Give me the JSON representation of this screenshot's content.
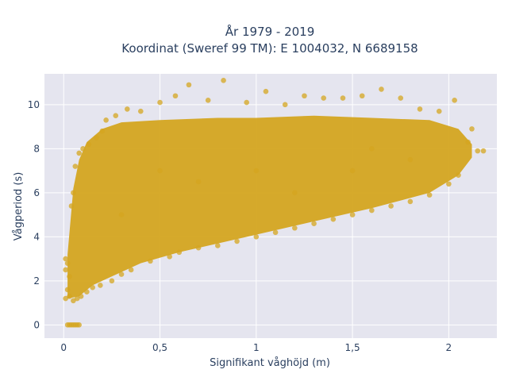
{
  "chart_data": {
    "type": "scatter",
    "title_lines": [
      "År 1979 - 2019",
      "Koordinat (Sweref 99 TM): E 1004032, N 6689158"
    ],
    "xlabel": "Signifikant våghöjd (m)",
    "ylabel": "Vågperiod (s)",
    "xlim": [
      -0.1,
      2.25
    ],
    "ylim": [
      -0.6,
      11.4
    ],
    "x_ticks": [
      0,
      0.5,
      1,
      1.5,
      2
    ],
    "x_tick_labels": [
      "0",
      "0,5",
      "1",
      "1,5",
      "2"
    ],
    "y_ticks": [
      0,
      2,
      4,
      6,
      8,
      10
    ],
    "y_tick_labels": [
      "0",
      "2",
      "4",
      "6",
      "8",
      "10"
    ],
    "grid": true,
    "background": "#e5e5ef",
    "grid_color": "#ffffff",
    "marker_color": "#d4a520",
    "marker_opacity": 0.75,
    "series": [
      {
        "name": "",
        "points": [
          [
            0.02,
            0.0
          ],
          [
            0.03,
            0.0
          ],
          [
            0.04,
            0.0
          ],
          [
            0.05,
            0.0
          ],
          [
            0.06,
            0.0
          ],
          [
            0.07,
            0.0
          ],
          [
            0.08,
            0.0
          ],
          [
            0.01,
            1.2
          ],
          [
            0.01,
            2.5
          ],
          [
            0.01,
            3.0
          ],
          [
            0.02,
            1.6
          ],
          [
            0.02,
            2.8
          ],
          [
            0.03,
            1.3
          ],
          [
            0.03,
            2.2
          ],
          [
            0.04,
            5.4
          ],
          [
            0.05,
            1.1
          ],
          [
            0.05,
            6.0
          ],
          [
            0.06,
            7.2
          ],
          [
            0.07,
            1.2
          ],
          [
            0.08,
            7.8
          ],
          [
            0.09,
            1.3
          ],
          [
            0.1,
            8.0
          ],
          [
            0.12,
            1.5
          ],
          [
            0.13,
            8.2
          ],
          [
            0.15,
            1.7
          ],
          [
            0.17,
            8.5
          ],
          [
            0.19,
            1.8
          ],
          [
            0.2,
            8.8
          ],
          [
            0.22,
            9.3
          ],
          [
            0.25,
            2.0
          ],
          [
            0.27,
            9.5
          ],
          [
            0.3,
            2.3
          ],
          [
            0.33,
            9.8
          ],
          [
            0.35,
            2.5
          ],
          [
            0.4,
            9.7
          ],
          [
            0.45,
            2.9
          ],
          [
            0.5,
            10.1
          ],
          [
            0.55,
            3.1
          ],
          [
            0.58,
            10.4
          ],
          [
            0.6,
            3.3
          ],
          [
            0.65,
            10.9
          ],
          [
            0.7,
            3.5
          ],
          [
            0.75,
            10.2
          ],
          [
            0.8,
            3.6
          ],
          [
            0.83,
            11.1
          ],
          [
            0.9,
            3.8
          ],
          [
            0.95,
            10.1
          ],
          [
            1.0,
            4.0
          ],
          [
            1.05,
            10.6
          ],
          [
            1.1,
            4.2
          ],
          [
            1.15,
            10.0
          ],
          [
            1.2,
            4.4
          ],
          [
            1.25,
            10.4
          ],
          [
            1.3,
            4.6
          ],
          [
            1.35,
            10.3
          ],
          [
            1.4,
            4.8
          ],
          [
            1.45,
            10.3
          ],
          [
            1.5,
            5.0
          ],
          [
            1.55,
            10.4
          ],
          [
            1.6,
            5.2
          ],
          [
            1.65,
            10.7
          ],
          [
            1.7,
            5.4
          ],
          [
            1.75,
            10.3
          ],
          [
            1.8,
            5.6
          ],
          [
            1.85,
            9.8
          ],
          [
            1.9,
            5.9
          ],
          [
            1.95,
            9.7
          ],
          [
            2.0,
            6.4
          ],
          [
            2.03,
            10.2
          ],
          [
            2.05,
            6.8
          ],
          [
            2.1,
            8.3
          ],
          [
            2.12,
            8.9
          ],
          [
            2.15,
            7.9
          ],
          [
            2.18,
            7.9
          ],
          [
            0.5,
            7.0
          ],
          [
            0.7,
            6.5
          ],
          [
            1.0,
            7.0
          ],
          [
            1.2,
            6.0
          ],
          [
            1.5,
            7.0
          ],
          [
            1.8,
            7.5
          ],
          [
            1.6,
            8.0
          ],
          [
            0.3,
            5.0
          ]
        ]
      }
    ]
  }
}
